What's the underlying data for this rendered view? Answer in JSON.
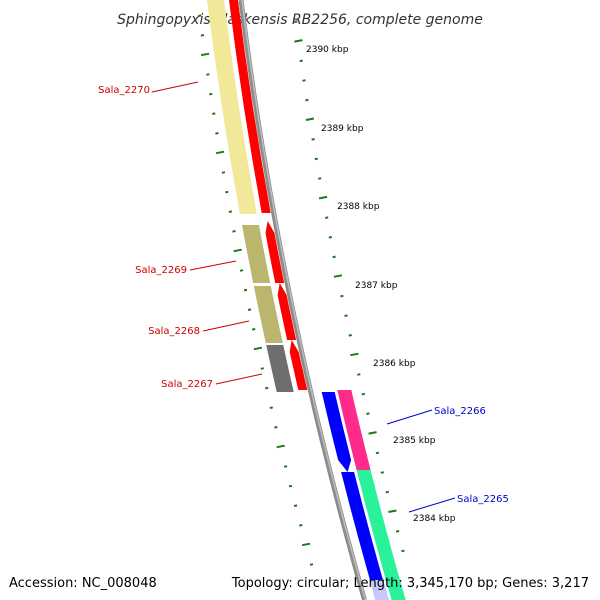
{
  "header": {
    "title": "Sphingopyxis alaskensis RB2256, complete genome"
  },
  "footer": {
    "accession": "Accession: NC_008048",
    "info": "Topology: circular; Length: 3,345,170 bp; Genes: 3,217"
  },
  "scale_ticks": [
    "2390 kbp",
    "2389 kbp",
    "2388 kbp",
    "2387 kbp",
    "2386 kbp",
    "2385 kbp",
    "2384 kbp"
  ],
  "gene_labels": [
    {
      "name": "Sala_2270",
      "color": "#cc0000"
    },
    {
      "name": "Sala_2269",
      "color": "#cc0000"
    },
    {
      "name": "Sala_2268",
      "color": "#cc0000"
    },
    {
      "name": "Sala_2267",
      "color": "#cc0000"
    },
    {
      "name": "Sala_2266",
      "color": "#0000cc"
    },
    {
      "name": "Sala_2265",
      "color": "#0000cc"
    }
  ],
  "colors": {
    "backbone": "#8c8c8c",
    "tick_dash": "#1a7a1a",
    "cds_reverse": "#ff0000",
    "cds_forward": "#0000ff",
    "cog_yellow": "#f2e89a",
    "cog_olive": "#bab66e",
    "cog_gray": "#6e6e6e",
    "cog_pink": "#ff2b8a",
    "cog_green": "#29f29a",
    "cog_lavender": "#c8c8ff"
  }
}
